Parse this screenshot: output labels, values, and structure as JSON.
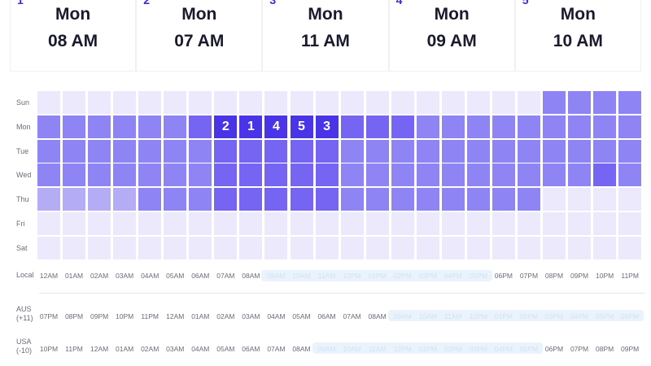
{
  "top_slots": [
    {
      "rank": "1",
      "day": "Mon",
      "time": "08 AM"
    },
    {
      "rank": "2",
      "day": "Mon",
      "time": "07 AM"
    },
    {
      "rank": "3",
      "day": "Mon",
      "time": "11 AM"
    },
    {
      "rank": "4",
      "day": "Mon",
      "time": "09 AM"
    },
    {
      "rank": "5",
      "day": "Mon",
      "time": "10 AM"
    }
  ],
  "days": [
    "Sun",
    "Mon",
    "Tue",
    "Wed",
    "Thu",
    "Fri",
    "Sat"
  ],
  "heatmap": {
    "hours": 24,
    "intensity": [
      [
        0,
        0,
        0,
        0,
        0,
        0,
        0,
        0,
        0,
        0,
        0,
        0,
        0,
        0,
        0,
        0,
        0,
        0,
        0,
        0,
        2,
        2,
        2,
        2
      ],
      [
        2,
        2,
        2,
        2,
        2,
        2,
        3,
        4,
        4,
        4,
        4,
        4,
        3,
        3,
        3,
        2,
        2,
        2,
        2,
        2,
        2,
        2,
        2,
        2
      ],
      [
        2,
        2,
        2,
        2,
        2,
        2,
        2,
        3,
        3,
        3,
        3,
        3,
        2,
        2,
        2,
        2,
        2,
        2,
        2,
        2,
        2,
        2,
        2,
        2
      ],
      [
        2,
        2,
        2,
        2,
        2,
        2,
        2,
        3,
        3,
        3,
        3,
        3,
        2,
        2,
        2,
        2,
        2,
        2,
        2,
        2,
        2,
        2,
        3,
        2
      ],
      [
        1,
        1,
        1,
        1,
        2,
        2,
        2,
        3,
        3,
        3,
        3,
        3,
        2,
        2,
        2,
        2,
        2,
        2,
        2,
        2,
        0,
        0,
        0,
        0
      ],
      [
        0,
        0,
        0,
        0,
        0,
        0,
        0,
        0,
        0,
        0,
        0,
        0,
        0,
        0,
        0,
        0,
        0,
        0,
        0,
        0,
        0,
        0,
        0,
        0
      ],
      [
        0,
        0,
        0,
        0,
        0,
        0,
        0,
        0,
        0,
        0,
        0,
        0,
        0,
        0,
        0,
        0,
        0,
        0,
        0,
        0,
        0,
        0,
        0,
        0
      ]
    ],
    "ranks": [
      {
        "day": 1,
        "hour": 7,
        "label": "2"
      },
      {
        "day": 1,
        "hour": 8,
        "label": "1"
      },
      {
        "day": 1,
        "hour": 9,
        "label": "4"
      },
      {
        "day": 1,
        "hour": 10,
        "label": "5"
      },
      {
        "day": 1,
        "hour": 11,
        "label": "3"
      }
    ],
    "colors": [
      "#ece9fc",
      "#b4acf5",
      "#8f84f4",
      "#7565f2",
      "#4a34e8"
    ]
  },
  "axes": [
    {
      "label": "Local",
      "ticks": [
        "12AM",
        "01AM",
        "02AM",
        "03AM",
        "04AM",
        "05AM",
        "06AM",
        "07AM",
        "08AM",
        "09AM",
        "10AM",
        "11AM",
        "12PM",
        "01PM",
        "02PM",
        "03PM",
        "04PM",
        "05PM",
        "06PM",
        "07PM",
        "08PM",
        "09PM",
        "10PM",
        "11PM"
      ],
      "highlight": [
        9,
        17
      ]
    },
    {
      "label": "AUS (+11)",
      "ticks": [
        "07PM",
        "08PM",
        "09PM",
        "10PM",
        "11PM",
        "12AM",
        "01AM",
        "02AM",
        "03AM",
        "04AM",
        "05AM",
        "06AM",
        "07AM",
        "08AM",
        "09AM",
        "10AM",
        "11AM",
        "12PM",
        "01PM",
        "02PM",
        "03PM",
        "04PM",
        "05PM",
        "06PM"
      ],
      "highlight": [
        14,
        23
      ]
    },
    {
      "label": "USA (-10)",
      "ticks": [
        "10PM",
        "11PM",
        "12AM",
        "01AM",
        "02AM",
        "03AM",
        "04AM",
        "05AM",
        "06AM",
        "07AM",
        "08AM",
        "09AM",
        "10AM",
        "11AM",
        "12PM",
        "01PM",
        "02PM",
        "03PM",
        "04PM",
        "05PM",
        "06PM",
        "07PM",
        "08PM",
        "09PM"
      ],
      "highlight": [
        11,
        19
      ]
    }
  ]
}
